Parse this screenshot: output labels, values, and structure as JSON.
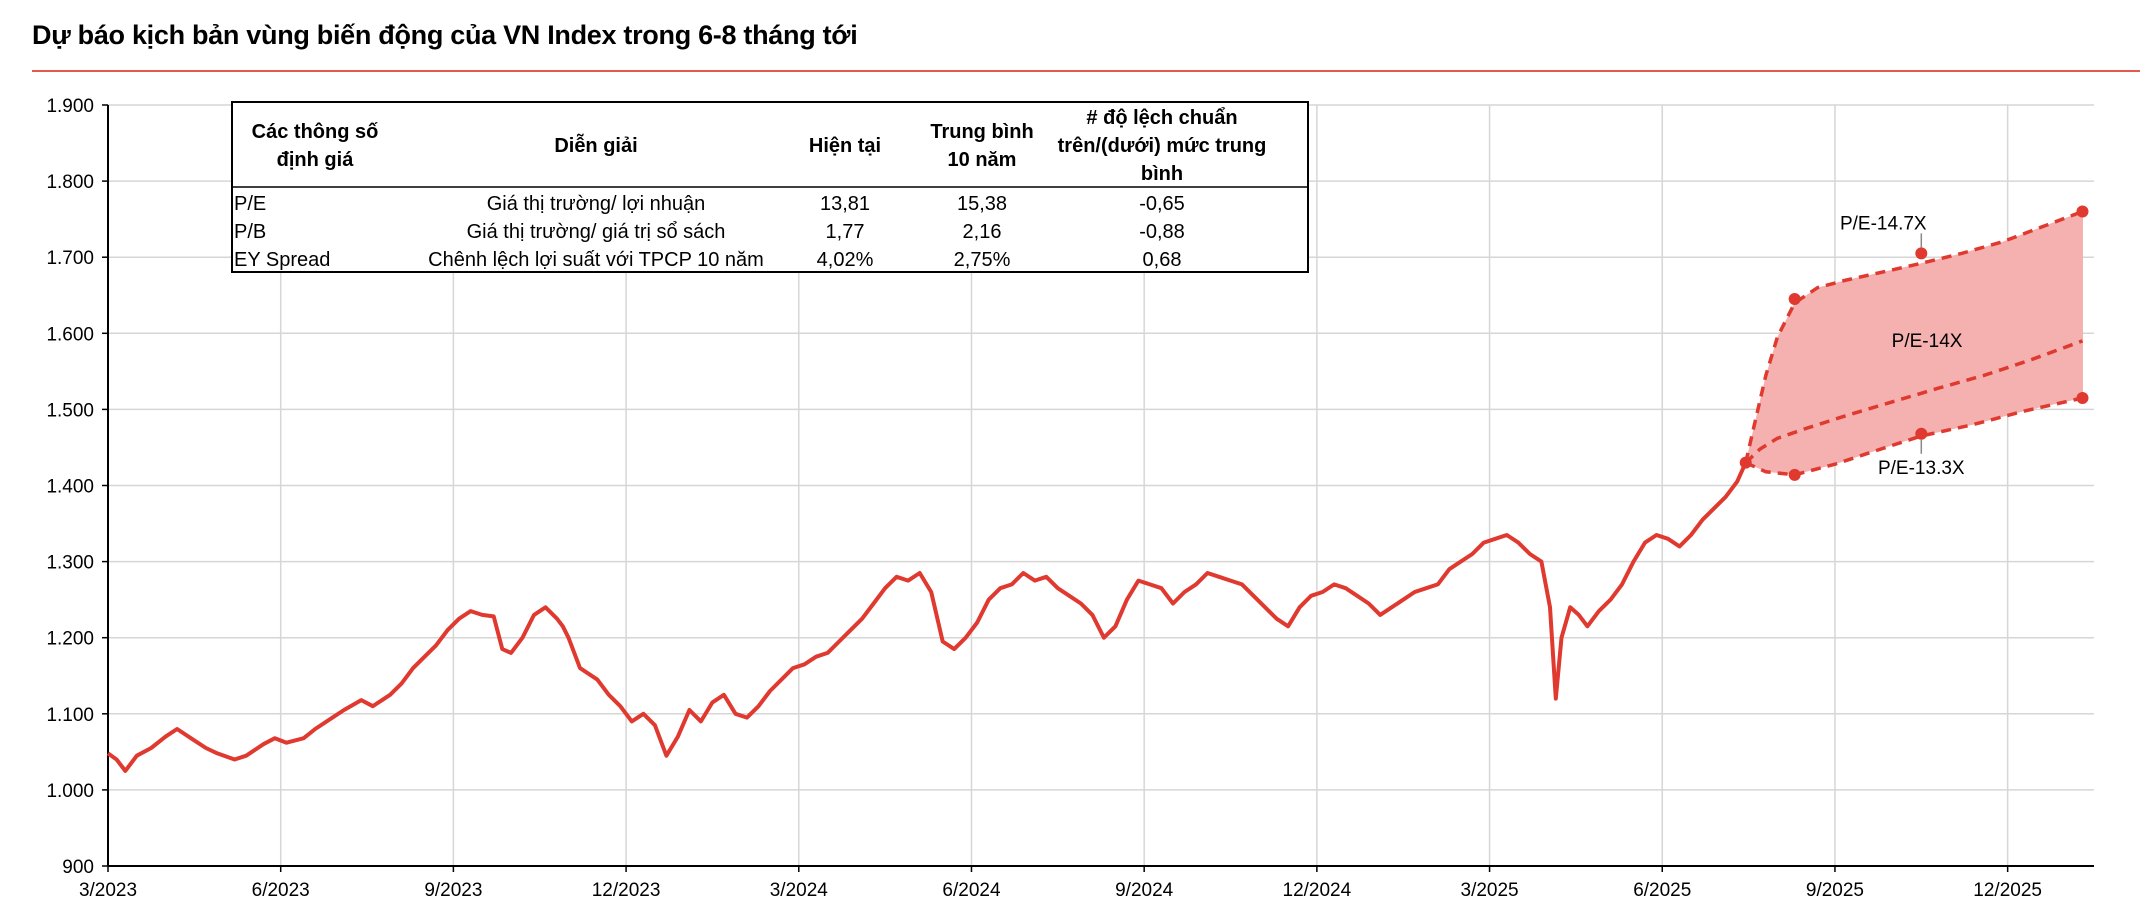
{
  "title": "Dự báo kịch bản vùng biến động của VN Index trong 6-8 tháng tới",
  "colors": {
    "line": "#e0392f",
    "band_fill": "#f4b1b0",
    "grid": "#d6d6d6",
    "accent_rule": "#e05a4e"
  },
  "table": {
    "headers": [
      [
        "Các thông số",
        "định giá"
      ],
      [
        "Diễn  giải"
      ],
      [
        "Hiện tại"
      ],
      [
        "Trung bình",
        "10 năm"
      ],
      [
        "# độ lệch chuẩn",
        "trên/(dưới) mức trung",
        "bình"
      ]
    ],
    "rows": [
      [
        "P/E",
        "Giá thị trường/ lợi nhuận",
        "13,81",
        "15,38",
        "-0,65"
      ],
      [
        "P/B",
        "Giá thị trường/ giá trị sổ sách",
        "1,77",
        "2,16",
        "-0,88"
      ],
      [
        "EY Spread",
        "Chênh lệch lợi suất với TPCP 10 năm",
        "4,02%",
        "2,75%",
        "0,68"
      ]
    ]
  },
  "chart_data": {
    "type": "line",
    "title": "Dự báo kịch bản vùng biến động của VN Index trong 6-8 tháng tới",
    "x_unit": "months since 3/2023",
    "xlim": [
      0,
      34.5
    ],
    "ylim": [
      900,
      1900
    ],
    "yticks": [
      900,
      1000,
      1100,
      1200,
      1300,
      1400,
      1500,
      1600,
      1700,
      1800,
      1900
    ],
    "ytick_labels": [
      "900",
      "1.000",
      "1.100",
      "1.200",
      "1.300",
      "1.400",
      "1.500",
      "1.600",
      "1.700",
      "1.800",
      "1.900"
    ],
    "xticks": [
      0,
      3,
      6,
      9,
      12,
      15,
      18,
      21,
      24,
      27,
      30,
      33
    ],
    "xtick_labels": [
      "3/2023",
      "6/2023",
      "9/2023",
      "12/2023",
      "3/2024",
      "6/2024",
      "9/2024",
      "12/2024",
      "3/2025",
      "6/2025",
      "9/2025",
      "12/2025"
    ],
    "grid": true,
    "history": {
      "x": [
        0,
        0.15,
        0.3,
        0.5,
        0.75,
        1.0,
        1.2,
        1.5,
        1.7,
        1.9,
        2.2,
        2.4,
        2.7,
        2.9,
        3.1,
        3.4,
        3.6,
        3.9,
        4.1,
        4.4,
        4.6,
        4.9,
        5.1,
        5.3,
        5.5,
        5.7,
        5.9,
        6.1,
        6.3,
        6.5,
        6.7,
        6.85,
        7.0,
        7.2,
        7.4,
        7.6,
        7.8,
        7.9,
        8.0,
        8.2,
        8.5,
        8.7,
        8.9,
        9.1,
        9.3,
        9.5,
        9.7,
        9.9,
        10.1,
        10.3,
        10.5,
        10.7,
        10.9,
        11.1,
        11.3,
        11.5,
        11.7,
        11.9,
        12.1,
        12.3,
        12.5,
        12.7,
        12.9,
        13.1,
        13.3,
        13.5,
        13.7,
        13.9,
        14.1,
        14.3,
        14.5,
        14.7,
        14.9,
        15.1,
        15.3,
        15.5,
        15.7,
        15.9,
        16.1,
        16.3,
        16.5,
        16.7,
        16.9,
        17.1,
        17.3,
        17.5,
        17.7,
        17.9,
        18.1,
        18.3,
        18.5,
        18.7,
        18.9,
        19.1,
        19.3,
        19.5,
        19.7,
        19.9,
        20.1,
        20.3,
        20.5,
        20.7,
        20.9,
        21.1,
        21.3,
        21.5,
        21.7,
        21.9,
        22.1,
        22.3,
        22.5,
        22.7,
        22.9,
        23.1,
        23.3,
        23.5,
        23.7,
        23.9,
        24.1,
        24.3,
        24.5,
        24.7,
        24.9,
        25.05,
        25.15,
        25.25,
        25.4,
        25.55,
        25.7,
        25.9,
        26.1,
        26.3,
        26.5,
        26.7,
        26.9,
        27.1,
        27.3,
        27.5,
        27.7,
        27.9,
        28.1,
        28.3,
        28.45
      ],
      "y": [
        1048,
        1040,
        1025,
        1045,
        1055,
        1070,
        1080,
        1065,
        1055,
        1048,
        1040,
        1045,
        1060,
        1068,
        1062,
        1068,
        1080,
        1095,
        1105,
        1118,
        1110,
        1125,
        1140,
        1160,
        1175,
        1190,
        1210,
        1225,
        1235,
        1230,
        1228,
        1185,
        1180,
        1200,
        1230,
        1240,
        1225,
        1215,
        1200,
        1160,
        1145,
        1125,
        1110,
        1090,
        1100,
        1085,
        1045,
        1070,
        1105,
        1090,
        1115,
        1125,
        1100,
        1095,
        1110,
        1130,
        1145,
        1160,
        1165,
        1175,
        1180,
        1195,
        1210,
        1225,
        1245,
        1265,
        1280,
        1275,
        1285,
        1260,
        1195,
        1185,
        1200,
        1220,
        1250,
        1265,
        1270,
        1285,
        1275,
        1280,
        1265,
        1255,
        1245,
        1230,
        1200,
        1215,
        1250,
        1275,
        1270,
        1265,
        1245,
        1260,
        1270,
        1285,
        1280,
        1275,
        1270,
        1255,
        1240,
        1225,
        1215,
        1240,
        1255,
        1260,
        1270,
        1265,
        1255,
        1245,
        1230,
        1240,
        1250,
        1260,
        1265,
        1270,
        1290,
        1300,
        1310,
        1325,
        1330,
        1335,
        1325,
        1310,
        1300,
        1240,
        1120,
        1200,
        1240,
        1230,
        1215,
        1235,
        1250,
        1270,
        1300,
        1325,
        1335,
        1330,
        1320,
        1335,
        1355,
        1370,
        1385,
        1405,
        1430
      ]
    },
    "scenarios": [
      {
        "name": "P/E-14.7X",
        "x": [
          28.45,
          28.6,
          28.8,
          29.0,
          29.3,
          29.7,
          30.2,
          30.8,
          31.5,
          32.2,
          32.9,
          33.6,
          34.3
        ],
        "y": [
          1430,
          1480,
          1545,
          1595,
          1640,
          1660,
          1670,
          1680,
          1692,
          1705,
          1720,
          1740,
          1760
        ],
        "markers": [
          {
            "x": 29.3,
            "y": 1645
          },
          {
            "x": 31.5,
            "y": 1705
          },
          {
            "x": 34.3,
            "y": 1760
          }
        ]
      },
      {
        "name": "P/E-14X",
        "x": [
          28.45,
          28.7,
          29.0,
          29.5,
          30.2,
          31.0,
          31.8,
          32.6,
          33.4,
          34.3
        ],
        "y": [
          1430,
          1448,
          1462,
          1475,
          1492,
          1510,
          1528,
          1545,
          1565,
          1590
        ]
      },
      {
        "name": "P/E-13.3X",
        "x": [
          28.45,
          28.8,
          29.3,
          30.0,
          30.8,
          31.5,
          32.4,
          33.3,
          34.3
        ],
        "y": [
          1430,
          1418,
          1414,
          1428,
          1448,
          1465,
          1480,
          1498,
          1515
        ],
        "markers": [
          {
            "x": 29.3,
            "y": 1414
          },
          {
            "x": 31.5,
            "y": 1468
          },
          {
            "x": 34.3,
            "y": 1515
          }
        ]
      }
    ],
    "annotations": [
      {
        "text": "P/E-14.7X",
        "x": 31.5,
        "y": 1705
      },
      {
        "text": "P/E-14X",
        "x": 31.6,
        "y": 1590
      },
      {
        "text": "P/E-13.3X",
        "x": 31.5,
        "y": 1468
      }
    ]
  }
}
